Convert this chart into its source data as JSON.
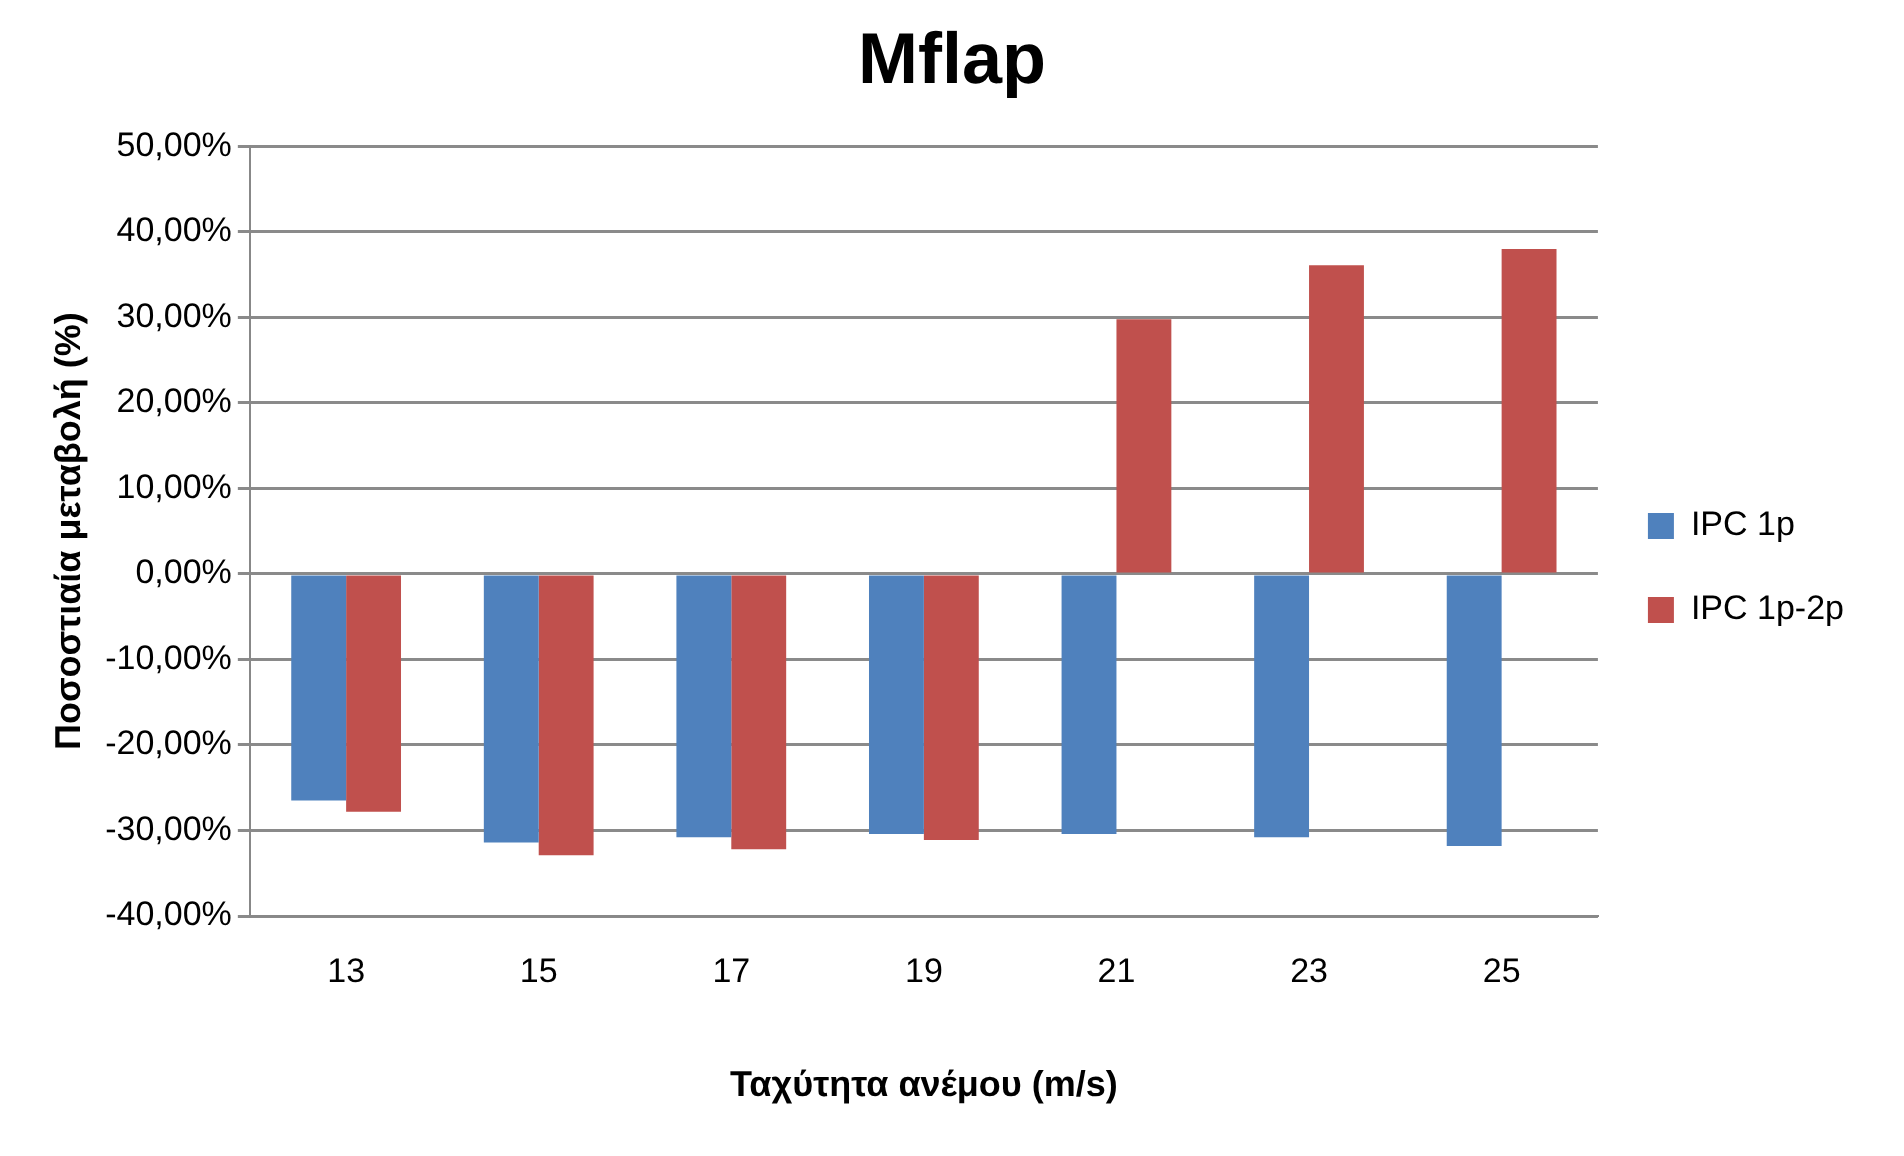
{
  "chart_data": {
    "type": "bar",
    "title": "Mflap",
    "xlabel": "Ταχύτητα ανέμου (m/s)",
    "ylabel": "Ποσοστιαία μεταβολή (%)",
    "categories": [
      "13",
      "15",
      "17",
      "19",
      "21",
      "23",
      "25"
    ],
    "series": [
      {
        "name": "IPC 1p",
        "color": "#4f81bd",
        "values": [
          -26.5,
          -31.4,
          -30.8,
          -30.4,
          -30.4,
          -30.8,
          -31.8
        ]
      },
      {
        "name": "IPC 1p-2p",
        "color": "#c0504d",
        "values": [
          -27.8,
          -32.9,
          -32.2,
          -31.1,
          29.8,
          36.1,
          38.0
        ]
      }
    ],
    "ylim": [
      -40,
      50
    ],
    "yticks": [
      {
        "value": -40,
        "label": "-40,00%"
      },
      {
        "value": -30,
        "label": "-30,00%"
      },
      {
        "value": -20,
        "label": "-20,00%"
      },
      {
        "value": -10,
        "label": "-10,00%"
      },
      {
        "value": 0,
        "label": "0,00%"
      },
      {
        "value": 10,
        "label": "10,00%"
      },
      {
        "value": 20,
        "label": "20,00%"
      },
      {
        "value": 30,
        "label": "30,00%"
      },
      {
        "value": 40,
        "label": "40,00%"
      },
      {
        "value": 50,
        "label": "50,00%"
      }
    ],
    "grid": "y",
    "legend": "right"
  }
}
